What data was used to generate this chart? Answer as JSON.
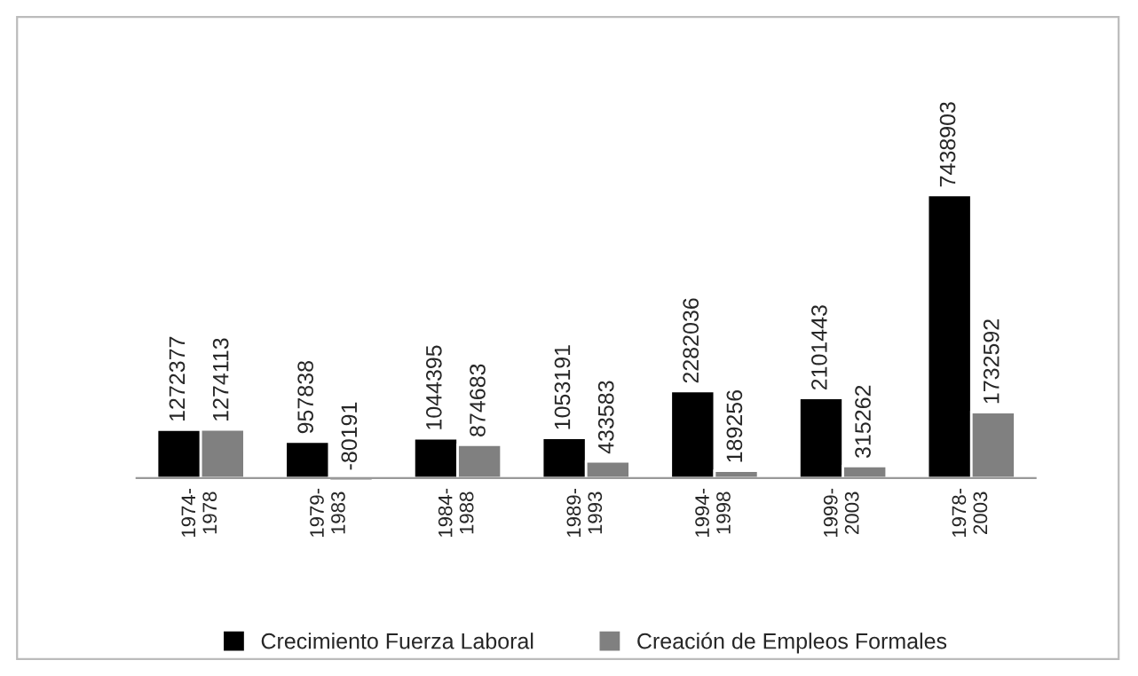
{
  "chart_data": {
    "type": "bar",
    "categories": [
      "1974-\n1978",
      "1979-\n1983",
      "1984-\n1988",
      "1989-\n1993",
      "1994-\n1998",
      "1999-\n2003",
      "1978-\n2003"
    ],
    "series": [
      {
        "name": "Crecimiento Fuerza Laboral",
        "color": "#000000",
        "values": [
          1272377,
          957838,
          1044395,
          1053191,
          2282036,
          2101443,
          7438903
        ]
      },
      {
        "name": "Creación de Empleos Formales",
        "color": "#808080",
        "values": [
          1274113,
          -80191,
          874683,
          433583,
          189256,
          315262,
          1732592
        ]
      }
    ],
    "data_labels": true,
    "legend": "bottom",
    "grid": false,
    "tick_labels": "x"
  }
}
